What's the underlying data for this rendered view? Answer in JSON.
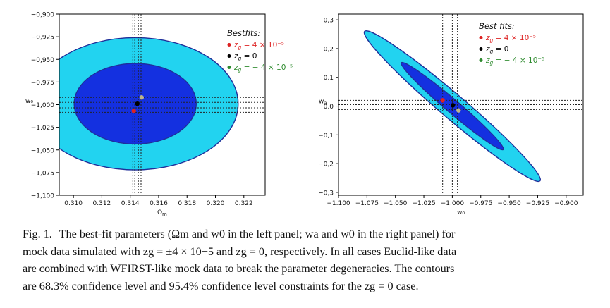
{
  "chart_data": [
    {
      "type": "scatter",
      "panel": "left",
      "xlabel": "Ω_m",
      "ylabel": "w₀",
      "xlim": [
        0.309,
        0.3235
      ],
      "ylim": [
        -1.1,
        -0.9
      ],
      "xticks": [
        0.31,
        0.312,
        0.314,
        0.316,
        0.318,
        0.32,
        0.322
      ],
      "xtick_labels": [
        "0.310",
        "0.312",
        "0.314",
        "0.316",
        "0.318",
        "0.320",
        "0.322"
      ],
      "yticks": [
        -0.9,
        -0.925,
        -0.95,
        -0.975,
        -1.0,
        -1.025,
        -1.05,
        -1.075,
        -1.1
      ],
      "ytick_labels": [
        "−0,900",
        "−0,925",
        "−0,950",
        "−0,975",
        "−1,000",
        "−1,025",
        "−1,050",
        "−1,075",
        "−1,100"
      ],
      "contours": [
        {
          "level": "95.4%",
          "center": [
            0.31435,
            -0.999
          ],
          "semi_x": 0.00725,
          "semi_y": 0.073,
          "angle": 0,
          "color": "#22d3f0"
        },
        {
          "level": "68.3%",
          "center": [
            0.31435,
            -0.999
          ],
          "semi_x": 0.0043,
          "semi_y": 0.0445,
          "angle": 0,
          "color": "#1430e0"
        }
      ],
      "points": [
        {
          "label": "z_g = 4 × 10⁻⁵",
          "x": 0.31425,
          "y": -1.007,
          "color": "#dd2222"
        },
        {
          "label": "z_g = 0",
          "x": 0.3145,
          "y": -0.999,
          "color": "#000000"
        },
        {
          "label": "z_g = −4 × 10⁻⁵",
          "x": 0.3148,
          "y": -0.992,
          "color": "#bdb58a"
        }
      ],
      "vlines": [
        0.31418,
        0.31432,
        0.31457,
        0.31476
      ],
      "hlines": [
        -0.992,
        -0.9975,
        -1.0035,
        -1.0085
      ],
      "legend": {
        "title": "Bestfits:",
        "entries": [
          {
            "text": "z_g = 4 × 10⁻⁵",
            "color": "#dd2222"
          },
          {
            "text": "z_g = 0",
            "color": "#000000"
          },
          {
            "text": "z_g = − 4 × 10⁻⁵",
            "color": "#2e8b2e"
          }
        ],
        "position": "top-right"
      }
    },
    {
      "type": "scatter",
      "panel": "right",
      "xlabel": "w₀",
      "ylabel": "w_a",
      "xlim": [
        -1.1,
        -0.885
      ],
      "ylim": [
        -0.31,
        0.32
      ],
      "xticks": [
        -1.1,
        -1.075,
        -1.05,
        -1.025,
        -1.0,
        -0.975,
        -0.95,
        -0.925,
        -0.9
      ],
      "xtick_labels": [
        "−1.100",
        "−1.075",
        "−1.050",
        "−1.025",
        "−1.000",
        "−0.975",
        "−0.950",
        "−0.925",
        "−0.900"
      ],
      "yticks": [
        -0.3,
        -0.2,
        -0.1,
        0.0,
        0.1,
        0.2,
        0.3
      ],
      "ytick_labels": [
        "−0,3",
        "−0,2",
        "−0,1",
        "0,0",
        "0,1",
        "0,2",
        "0,3"
      ],
      "contours": [
        {
          "level": "95.4%",
          "center": [
            -1.0,
            0.0
          ],
          "semi_major": 0.382,
          "semi_minor": 0.074,
          "angle": 0.705,
          "color": "#22d3f0"
        },
        {
          "level": "68.3%",
          "center": [
            -1.0,
            0.0
          ],
          "semi_major": 0.222,
          "semi_minor": 0.04,
          "angle": 0.705,
          "color": "#1430e0"
        }
      ],
      "points": [
        {
          "label": "z_g = 4 × 10⁻⁵",
          "x": -1.0085,
          "y": 0.02,
          "color": "#dd2222"
        },
        {
          "label": "z_g = 0",
          "x": -0.9995,
          "y": 0.003,
          "color": "#000000"
        },
        {
          "label": "z_g = −4 × 10⁻⁵",
          "x": -0.9945,
          "y": -0.015,
          "color": "#bdb58a"
        }
      ],
      "vlines": [
        -1.0085,
        -1.0,
        -0.9955
      ],
      "hlines": [
        0.02,
        0.005,
        -0.012
      ],
      "legend": {
        "title": "Best fits:",
        "entries": [
          {
            "text": "z_g = 4 × 10⁻⁵",
            "color": "#dd2222"
          },
          {
            "text": "z_g = 0",
            "color": "#000000"
          },
          {
            "text": "z_g = − 4 × 10⁻⁵",
            "color": "#2e8b2e"
          }
        ],
        "position": "top-right"
      }
    }
  ],
  "caption": {
    "label": "Fig. 1.",
    "lines": [
      "The best-fit parameters (Ωm and w0 in the left panel; wa and w0 in the right panel) for",
      "mock data simulated with zg = ±4 × 10−5 and zg = 0, respectively. In all cases Euclid-like data",
      "are combined with WFIRST-like mock data to break the parameter degeneracies. The contours",
      "are 68.3% confidence level and 95.4% confidence level constraints for the zg = 0 case."
    ]
  }
}
